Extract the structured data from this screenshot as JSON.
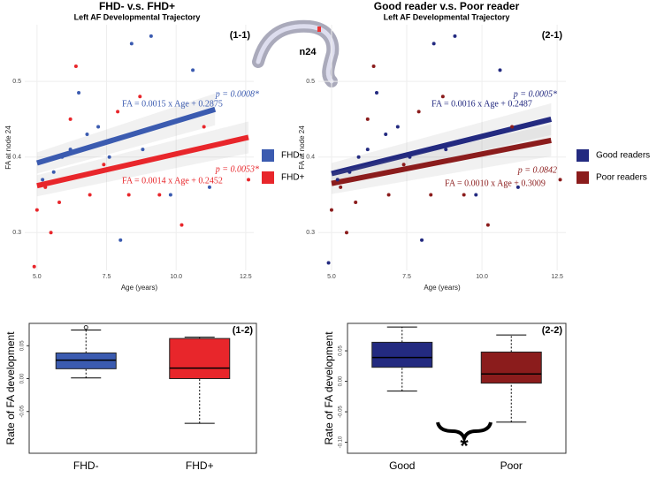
{
  "figure": {
    "brain_label": "n24"
  },
  "chart_data": [
    {
      "type": "scatter",
      "title": "FHD- v.s. FHD+",
      "subtitle": "Left AF Developmental Trajectory",
      "panel_label": "(1-1)",
      "x_label": "Age (years)",
      "y_label": "FA at node 24",
      "xlim": [
        4.56,
        12.79
      ],
      "ylim": [
        0.25,
        0.575
      ],
      "xticks": [
        {
          "value": 5,
          "label": "5.0"
        },
        {
          "value": 7.5,
          "label": "7.5"
        },
        {
          "value": 10,
          "label": "10.0"
        },
        {
          "value": 12.5,
          "label": "12.5"
        }
      ],
      "yticks": [
        0.3,
        0.4,
        0.5
      ],
      "grid": true,
      "series": [
        {
          "name": "FHD-",
          "color": "#3b5bb0",
          "x": [
            5.2,
            5.6,
            5.9,
            6.2,
            6.5,
            6.8,
            7.2,
            7.6,
            8.0,
            8.4,
            8.8,
            9.1,
            9.8,
            10.6,
            11.2
          ],
          "values": [
            0.37,
            0.38,
            0.4,
            0.41,
            0.485,
            0.43,
            0.44,
            0.4,
            0.29,
            0.55,
            0.41,
            0.56,
            0.35,
            0.515,
            0.36
          ]
        },
        {
          "name": "FHD+",
          "color": "#e8262b",
          "x": [
            4.9,
            5.0,
            5.3,
            5.5,
            5.8,
            6.2,
            6.4,
            6.9,
            7.4,
            7.9,
            8.3,
            8.7,
            9.4,
            10.2,
            11.0,
            12.6
          ],
          "values": [
            0.255,
            0.33,
            0.36,
            0.3,
            0.34,
            0.45,
            0.52,
            0.35,
            0.39,
            0.46,
            0.35,
            0.48,
            0.35,
            0.31,
            0.44,
            0.37
          ]
        }
      ],
      "fits": [
        {
          "color": "#3b5bb0",
          "x": [
            5,
            11.4
          ],
          "values": [
            0.392,
            0.463
          ]
        },
        {
          "color": "#e8262b",
          "x": [
            5,
            12.6
          ],
          "values": [
            0.362,
            0.426
          ]
        }
      ],
      "annotations": [
        {
          "text": "p = 0.0008*",
          "color": "#3b5bb0"
        },
        {
          "text": "FA = 0.0015 x Age + 0.2875",
          "color": "#3b5bb0"
        },
        {
          "text": "p = 0.0053*",
          "color": "#e8262b"
        },
        {
          "text": "FA = 0.0014 x Age + 0.2452",
          "color": "#e8262b"
        }
      ]
    },
    {
      "type": "scatter",
      "title": "Good reader v.s. Poor reader",
      "subtitle": "Left AF Developmental Trajectory",
      "panel_label": "(2-1)",
      "x_label": "Age (years)",
      "y_label": "FA at node 24",
      "xlim": [
        4.56,
        12.79
      ],
      "ylim": [
        0.25,
        0.575
      ],
      "xticks": [
        {
          "value": 5,
          "label": "5.0"
        },
        {
          "value": 7.5,
          "label": "7.5"
        },
        {
          "value": 10,
          "label": "10.0"
        },
        {
          "value": 12.5,
          "label": "12.5"
        }
      ],
      "yticks": [
        0.3,
        0.4,
        0.5
      ],
      "grid": true,
      "series": [
        {
          "name": "Good readers",
          "color": "#232a80",
          "x": [
            4.9,
            5.2,
            5.6,
            5.9,
            6.2,
            6.5,
            6.8,
            7.2,
            7.6,
            8.0,
            8.4,
            8.8,
            9.1,
            9.8,
            10.6,
            11.2
          ],
          "values": [
            0.26,
            0.37,
            0.38,
            0.4,
            0.41,
            0.485,
            0.43,
            0.44,
            0.4,
            0.29,
            0.55,
            0.41,
            0.56,
            0.35,
            0.515,
            0.36
          ]
        },
        {
          "name": "Poor readers",
          "color": "#8b1c1c",
          "x": [
            5.0,
            5.3,
            5.5,
            5.8,
            6.2,
            6.4,
            6.9,
            7.4,
            7.9,
            8.3,
            8.7,
            9.4,
            10.2,
            11.0,
            12.6
          ],
          "values": [
            0.33,
            0.36,
            0.3,
            0.34,
            0.45,
            0.52,
            0.35,
            0.39,
            0.46,
            0.35,
            0.48,
            0.35,
            0.31,
            0.44,
            0.37
          ]
        }
      ],
      "fits": [
        {
          "color": "#232a80",
          "x": [
            5,
            12.3
          ],
          "values": [
            0.378,
            0.45
          ]
        },
        {
          "color": "#8b1c1c",
          "x": [
            5,
            12.3
          ],
          "values": [
            0.365,
            0.422
          ]
        }
      ],
      "annotations": [
        {
          "text": "p = 0.0005*",
          "color": "#232a80"
        },
        {
          "text": "FA = 0.0016 x Age + 0.2487",
          "color": "#232a80"
        },
        {
          "text": "p = 0.0842",
          "color": "#8b1c1c"
        },
        {
          "text": "FA = 0.0010 x Age + 0.3009",
          "color": "#8b1c1c"
        }
      ]
    },
    {
      "type": "box",
      "panel_label": "(1-2)",
      "y_label": "Rate of FA development",
      "ylim": [
        -0.1135,
        0.084
      ],
      "yticks": [
        {
          "value": -0.05,
          "label": "-0.05"
        },
        {
          "value": 0,
          "label": "0.00"
        },
        0.05
      ],
      "categories": [
        "FHD-",
        "FHD+"
      ],
      "boxes": [
        {
          "color": "#3b5bb0",
          "whislo": 0.001,
          "q1": 0.015,
          "med": 0.028,
          "q3": 0.039,
          "whishi": 0.074,
          "fliers": [
            0.078
          ]
        },
        {
          "color": "#e8262b",
          "whislo": -0.068,
          "q1": 0.0,
          "med": 0.016,
          "q3": 0.061,
          "whishi": 0.063,
          "fliers": []
        }
      ]
    },
    {
      "type": "box",
      "panel_label": "(2-2)",
      "y_label": "Rate of FA development",
      "ylim": [
        -0.118,
        0.095
      ],
      "yticks": [
        {
          "value": -0.1,
          "label": "-0.10"
        },
        {
          "value": -0.05,
          "label": "-0.05"
        },
        {
          "value": 0,
          "label": "0.00"
        },
        0.05
      ],
      "categories": [
        "Good",
        "Poor"
      ],
      "boxes": [
        {
          "color": "#232a80",
          "whislo": -0.016,
          "q1": 0.023,
          "med": 0.039,
          "q3": 0.064,
          "whishi": 0.089,
          "fliers": []
        },
        {
          "color": "#8b1c1c",
          "whislo": -0.067,
          "q1": -0.003,
          "med": 0.012,
          "q3": 0.048,
          "whishi": 0.076,
          "fliers": []
        }
      ],
      "annotations": [
        {
          "text": "*",
          "color": "#000000"
        }
      ]
    }
  ]
}
